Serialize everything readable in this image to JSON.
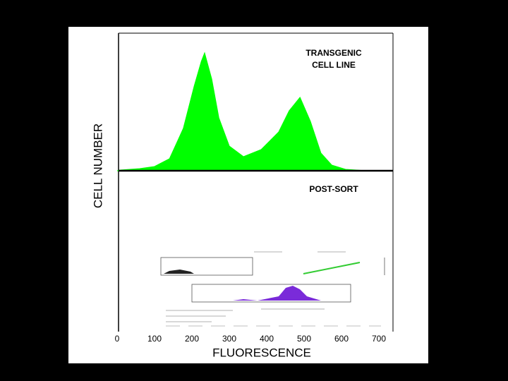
{
  "chart_data": {
    "type": "area",
    "panels": [
      "TRANSGENIC CELL LINE",
      "POST-SORT"
    ],
    "annotation_lines": [
      "TRANSGENIC",
      "CELL LINE"
    ],
    "annotation2": "POST-SORT",
    "xlabel": "FLUORESCENCE",
    "ylabel": "CELL NUMBER",
    "color": "#00ff00",
    "x": [
      0,
      8,
      60,
      100,
      140,
      177,
      206,
      225,
      234,
      253,
      272,
      300,
      338,
      385,
      432,
      460,
      489,
      517,
      545,
      574,
      611,
      668
    ],
    "values": [
      0,
      1,
      3,
      6,
      17,
      60,
      120,
      155,
      167,
      130,
      75,
      35,
      20,
      30,
      55,
      85,
      104,
      70,
      25,
      8,
      2,
      0
    ],
    "xlim": [
      0,
      700
    ],
    "xticks": [
      0,
      100,
      200,
      300,
      400,
      500,
      600,
      700
    ],
    "ylim": [
      0,
      195
    ]
  }
}
